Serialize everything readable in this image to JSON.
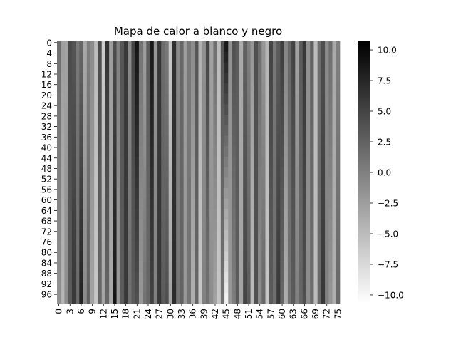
{
  "chart_data": {
    "type": "heatmap",
    "title": "Mapa de calor a blanco y negro",
    "xlabel": "",
    "ylabel": "",
    "n_cols": 76,
    "n_rows": 100,
    "x_tick_labels": [
      "0",
      "3",
      "6",
      "9",
      "12",
      "15",
      "18",
      "21",
      "24",
      "27",
      "30",
      "33",
      "36",
      "39",
      "42",
      "45",
      "48",
      "51",
      "54",
      "57",
      "60",
      "63",
      "66",
      "69",
      "72",
      "75"
    ],
    "y_tick_labels": [
      "0",
      "4",
      "8",
      "12",
      "16",
      "20",
      "24",
      "28",
      "32",
      "36",
      "40",
      "44",
      "48",
      "52",
      "56",
      "60",
      "64",
      "68",
      "72",
      "76",
      "80",
      "84",
      "88",
      "92",
      "96"
    ],
    "color_scale": {
      "colormap": "gray_r",
      "low_color": "#ffffff",
      "high_color": "#000000",
      "vmin": -10.7,
      "vmax": 10.7
    },
    "colorbar": {
      "tick_labels": [
        "10.0",
        "7.5",
        "5.0",
        "2.5",
        "0.0",
        "−2.5",
        "−5.0",
        "−7.5",
        "−10.0"
      ],
      "tick_values": [
        10,
        7.5,
        5,
        2.5,
        0,
        -2.5,
        -5,
        -7.5,
        -10
      ]
    },
    "column_profiles": [
      {
        "a": 1.5,
        "b": -1.5
      },
      {
        "a": -2.5,
        "b": -4.5
      },
      {
        "a": -3,
        "b": -1
      },
      {
        "a": 4.5,
        "b": 3
      },
      {
        "a": 3.5,
        "b": 6
      },
      {
        "a": 0.5,
        "b": 2
      },
      {
        "a": 2,
        "b": 8
      },
      {
        "a": -3.5,
        "b": -1
      },
      {
        "a": 0,
        "b": 2.5
      },
      {
        "a": -1,
        "b": -3
      },
      {
        "a": -5,
        "b": -6
      },
      {
        "a": 4.5,
        "b": 2
      },
      {
        "a": -6.5,
        "b": -3
      },
      {
        "a": 6.5,
        "b": 2
      },
      {
        "a": -2.5,
        "b": -3.5
      },
      {
        "a": 4,
        "b": 9
      },
      {
        "a": 0,
        "b": -2
      },
      {
        "a": 3.5,
        "b": 3
      },
      {
        "a": 6,
        "b": 6
      },
      {
        "a": -1,
        "b": 1.5
      },
      {
        "a": 5,
        "b": 3
      },
      {
        "a": 9,
        "b": 4
      },
      {
        "a": 1,
        "b": -2
      },
      {
        "a": -2.5,
        "b": 1
      },
      {
        "a": 3,
        "b": 2
      },
      {
        "a": 8.5,
        "b": 5
      },
      {
        "a": -2,
        "b": 0
      },
      {
        "a": 6,
        "b": 6
      },
      {
        "a": 1.5,
        "b": 3
      },
      {
        "a": 0.5,
        "b": 4
      },
      {
        "a": -6,
        "b": -3
      },
      {
        "a": 6.5,
        "b": 7
      },
      {
        "a": -1,
        "b": 1
      },
      {
        "a": 2,
        "b": 2.5
      },
      {
        "a": -2.5,
        "b": -2
      },
      {
        "a": 0.5,
        "b": 1
      },
      {
        "a": -1,
        "b": -4
      },
      {
        "a": 3.5,
        "b": 2
      },
      {
        "a": -4,
        "b": -6
      },
      {
        "a": -1.5,
        "b": 0
      },
      {
        "a": 5,
        "b": 1
      },
      {
        "a": -3,
        "b": -1
      },
      {
        "a": 1.5,
        "b": -3
      },
      {
        "a": -5,
        "b": -6
      },
      {
        "a": 3.5,
        "b": 1
      },
      {
        "a": 9,
        "b": -10
      },
      {
        "a": -1.5,
        "b": -2
      },
      {
        "a": 4,
        "b": 0
      },
      {
        "a": 3,
        "b": 3
      },
      {
        "a": -3.5,
        "b": -3
      },
      {
        "a": 2.5,
        "b": 5
      },
      {
        "a": 0,
        "b": 3
      },
      {
        "a": -2,
        "b": -5
      },
      {
        "a": 4,
        "b": 4
      },
      {
        "a": 1.5,
        "b": -1
      },
      {
        "a": -2,
        "b": 2
      },
      {
        "a": -4.5,
        "b": -6
      },
      {
        "a": 5,
        "b": 3
      },
      {
        "a": 0.5,
        "b": 1.5
      },
      {
        "a": 3,
        "b": 6
      },
      {
        "a": 5.5,
        "b": 2
      },
      {
        "a": -0.5,
        "b": -4
      },
      {
        "a": 2,
        "b": 1
      },
      {
        "a": 5,
        "b": 3
      },
      {
        "a": -3,
        "b": 0
      },
      {
        "a": 3,
        "b": 2
      },
      {
        "a": 6,
        "b": 4
      },
      {
        "a": -1.5,
        "b": -1
      },
      {
        "a": 2.5,
        "b": 1.5
      },
      {
        "a": -5,
        "b": -5
      },
      {
        "a": 1.5,
        "b": 2
      },
      {
        "a": 4,
        "b": 6
      },
      {
        "a": -1,
        "b": 0
      },
      {
        "a": 1.5,
        "b": -2
      },
      {
        "a": -3.5,
        "b": -4
      },
      {
        "a": 0,
        "b": 2
      }
    ]
  }
}
